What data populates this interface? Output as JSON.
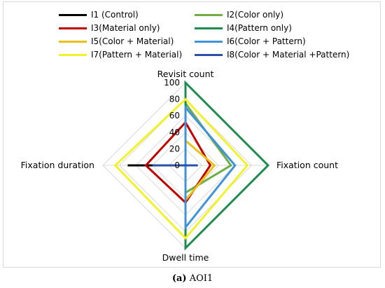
{
  "chart_data": {
    "type": "radar",
    "axes": [
      "Revisit count",
      "Fixation count",
      "Dwell time",
      "Fixation duration"
    ],
    "rlim": [
      0,
      100
    ],
    "ticks": [
      "0",
      "20",
      "40",
      "60",
      "80",
      "100"
    ],
    "grid": true,
    "legend_position": "top",
    "series": [
      {
        "name": "I1 (Control)",
        "color": "#000000",
        "values": [
          0,
          0,
          0,
          70
        ]
      },
      {
        "name": "I2(Color only)",
        "color": "#70ad47",
        "values": [
          75,
          55,
          33,
          0
        ]
      },
      {
        "name": "I3(Material only)",
        "color": "#c00000",
        "values": [
          52,
          30,
          45,
          48
        ]
      },
      {
        "name": "I4(Pattern only)",
        "color": "#1e8c4e",
        "values": [
          100,
          100,
          100,
          0
        ]
      },
      {
        "name": "I5(Color + Material)",
        "color": "#e8c21a",
        "values": [
          30,
          35,
          42,
          0
        ]
      },
      {
        "name": "I6(Color + Pattern)",
        "color": "#3f93d8",
        "values": [
          70,
          60,
          75,
          0
        ]
      },
      {
        "name": "I7(Pattern + Material)",
        "color": "#f2f22a",
        "values": [
          80,
          75,
          88,
          85
        ]
      },
      {
        "name": "I8(Color + Material +Pattern)",
        "color": "#2a50a8",
        "values": [
          0,
          15,
          0,
          40
        ]
      }
    ]
  },
  "caption": {
    "label": "(a)",
    "text": " AOI1"
  }
}
